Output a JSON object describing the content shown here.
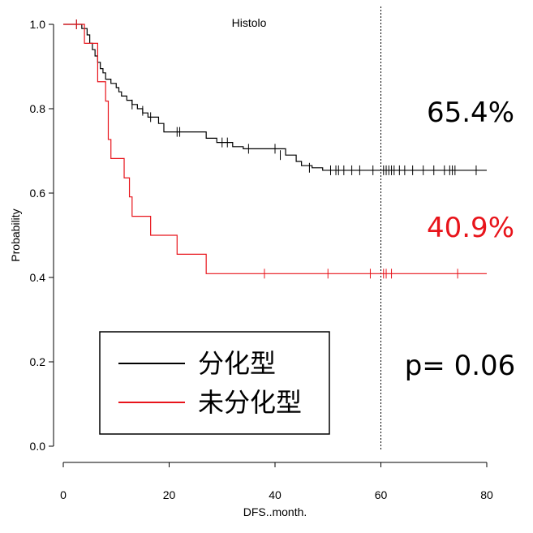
{
  "chart_data": {
    "type": "line",
    "subtype": "kaplan-meier",
    "title": "Histolo",
    "xlabel": "DFS..month.",
    "ylabel": "Probability",
    "xlim": [
      0,
      80
    ],
    "ylim": [
      0,
      1
    ],
    "x_ticks": [
      0,
      20,
      40,
      60,
      80
    ],
    "y_ticks": [
      0.0,
      0.2,
      0.4,
      0.6,
      0.8,
      1.0
    ],
    "x_tick_labels": [
      "0",
      "20",
      "40",
      "60",
      "80"
    ],
    "y_tick_labels": [
      "0.0",
      "0.2",
      "0.4",
      "0.6",
      "0.8",
      "1.0"
    ],
    "grid": false,
    "reference_line_x": 60,
    "series": [
      {
        "name": "分化型",
        "color": "#000000",
        "steps": [
          [
            0,
            1.0
          ],
          [
            3.5,
            0.99
          ],
          [
            4.5,
            0.975
          ],
          [
            5.0,
            0.955
          ],
          [
            5.5,
            0.94
          ],
          [
            6.0,
            0.925
          ],
          [
            6.5,
            0.91
          ],
          [
            7.0,
            0.895
          ],
          [
            7.5,
            0.885
          ],
          [
            8.0,
            0.87
          ],
          [
            9.0,
            0.86
          ],
          [
            10.0,
            0.85
          ],
          [
            10.5,
            0.84
          ],
          [
            11.0,
            0.83
          ],
          [
            12.0,
            0.82
          ],
          [
            13.0,
            0.81
          ],
          [
            14.0,
            0.8
          ],
          [
            15.0,
            0.79
          ],
          [
            16.0,
            0.78
          ],
          [
            18.0,
            0.765
          ],
          [
            19.0,
            0.745
          ],
          [
            27.0,
            0.73
          ],
          [
            29.0,
            0.72
          ],
          [
            32.0,
            0.71
          ],
          [
            34.0,
            0.705
          ],
          [
            42.0,
            0.69
          ],
          [
            44.0,
            0.675
          ],
          [
            45.0,
            0.665
          ],
          [
            47.0,
            0.66
          ],
          [
            49.0,
            0.654
          ],
          [
            80.0,
            0.654
          ]
        ],
        "censors": [
          [
            2.5,
            1.0
          ],
          [
            13.0,
            0.81
          ],
          [
            15.0,
            0.795
          ],
          [
            16.5,
            0.78
          ],
          [
            21.5,
            0.745
          ],
          [
            22.0,
            0.745
          ],
          [
            30.0,
            0.72
          ],
          [
            31.0,
            0.72
          ],
          [
            35.0,
            0.705
          ],
          [
            40.0,
            0.705
          ],
          [
            41.0,
            0.69
          ],
          [
            46.5,
            0.66
          ],
          [
            50.5,
            0.654
          ],
          [
            51.5,
            0.654
          ],
          [
            52.0,
            0.654
          ],
          [
            53.0,
            0.654
          ],
          [
            54.5,
            0.654
          ],
          [
            56.0,
            0.654
          ],
          [
            58.5,
            0.654
          ],
          [
            60.5,
            0.654
          ],
          [
            61.0,
            0.654
          ],
          [
            61.5,
            0.654
          ],
          [
            62.0,
            0.654
          ],
          [
            62.5,
            0.654
          ],
          [
            63.5,
            0.654
          ],
          [
            64.5,
            0.654
          ],
          [
            66.0,
            0.654
          ],
          [
            68.0,
            0.654
          ],
          [
            70.0,
            0.654
          ],
          [
            72.0,
            0.654
          ],
          [
            73.0,
            0.654
          ],
          [
            73.5,
            0.654
          ],
          [
            74.0,
            0.654
          ],
          [
            78.0,
            0.654
          ]
        ],
        "end_label": "65.4%"
      },
      {
        "name": "未分化型",
        "color": "#e8141b",
        "steps": [
          [
            0,
            1.0
          ],
          [
            4.0,
            0.955
          ],
          [
            6.5,
            0.864
          ],
          [
            8.0,
            0.818
          ],
          [
            8.5,
            0.727
          ],
          [
            9.0,
            0.682
          ],
          [
            11.5,
            0.636
          ],
          [
            12.5,
            0.591
          ],
          [
            13.0,
            0.545
          ],
          [
            16.5,
            0.5
          ],
          [
            21.5,
            0.455
          ],
          [
            27.0,
            0.409
          ],
          [
            80.0,
            0.409
          ]
        ],
        "censors": [
          [
            2.5,
            1.0
          ],
          [
            38.0,
            0.409
          ],
          [
            50.0,
            0.409
          ],
          [
            58.0,
            0.409
          ],
          [
            60.5,
            0.409
          ],
          [
            61.0,
            0.409
          ],
          [
            62.0,
            0.409
          ],
          [
            74.5,
            0.409
          ]
        ],
        "end_label": "40.9%"
      }
    ],
    "annotations": {
      "p_value": "p= 0.06"
    },
    "legend": {
      "placement": "bottom-left",
      "entries": [
        "分化型",
        "未分化型"
      ]
    }
  }
}
